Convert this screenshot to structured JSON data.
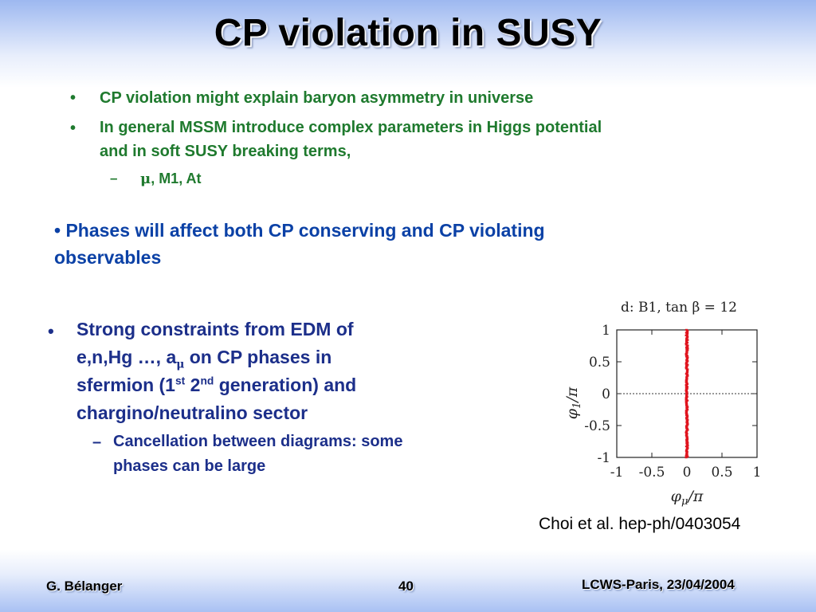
{
  "title": "CP violation in SUSY",
  "bullets_top": [
    {
      "text": "CP violation might explain baryon asymmetry in universe"
    },
    {
      "text_line1": "In general MSSM introduce complex parameters in Higgs potential",
      "text_line2": "and in soft SUSY breaking terms,"
    }
  ],
  "sub_bullet_top": {
    "mu": "μ",
    "rest": ", M1, At"
  },
  "phases": {
    "line1": "Phases will affect both CP conserving and CP violating",
    "line2": "observables"
  },
  "constraints": {
    "l1": "Strong constraints from EDM of",
    "l2a": "e,n,Hg …, a",
    "l2sub": "μ",
    "l2b": " on CP phases in",
    "l3a": "sfermion (1",
    "l3sup1": "st",
    "l3b": " 2",
    "l3sup2": "nd",
    "l3c": " generation) and",
    "l4": "chargino/neutralino sector"
  },
  "cancellation": {
    "l1": "Cancellation between diagrams: some",
    "l2": "phases can be large"
  },
  "chart_data": {
    "type": "scatter",
    "title": "d:  B1, tan β = 12",
    "xlabel": "φμ/π",
    "ylabel": "φ1/π",
    "xlim": [
      -1,
      1
    ],
    "ylim": [
      -1,
      1
    ],
    "xticks": [
      "-1",
      "-0.5",
      "0",
      "0.5",
      "1"
    ],
    "yticks": [
      "1",
      "0.5",
      "0",
      "-0.5",
      "-1"
    ],
    "series": [
      {
        "x": 0,
        "y_range": [
          -1,
          1
        ],
        "color": "#e0141e"
      }
    ],
    "reference_line": {
      "y": 0,
      "style": "dotted"
    }
  },
  "caption": "Choi et al. hep-ph/0403054",
  "footer": {
    "author": "G. Bélanger",
    "page": "40",
    "event": "LCWS-Paris, 23/04/2004"
  }
}
